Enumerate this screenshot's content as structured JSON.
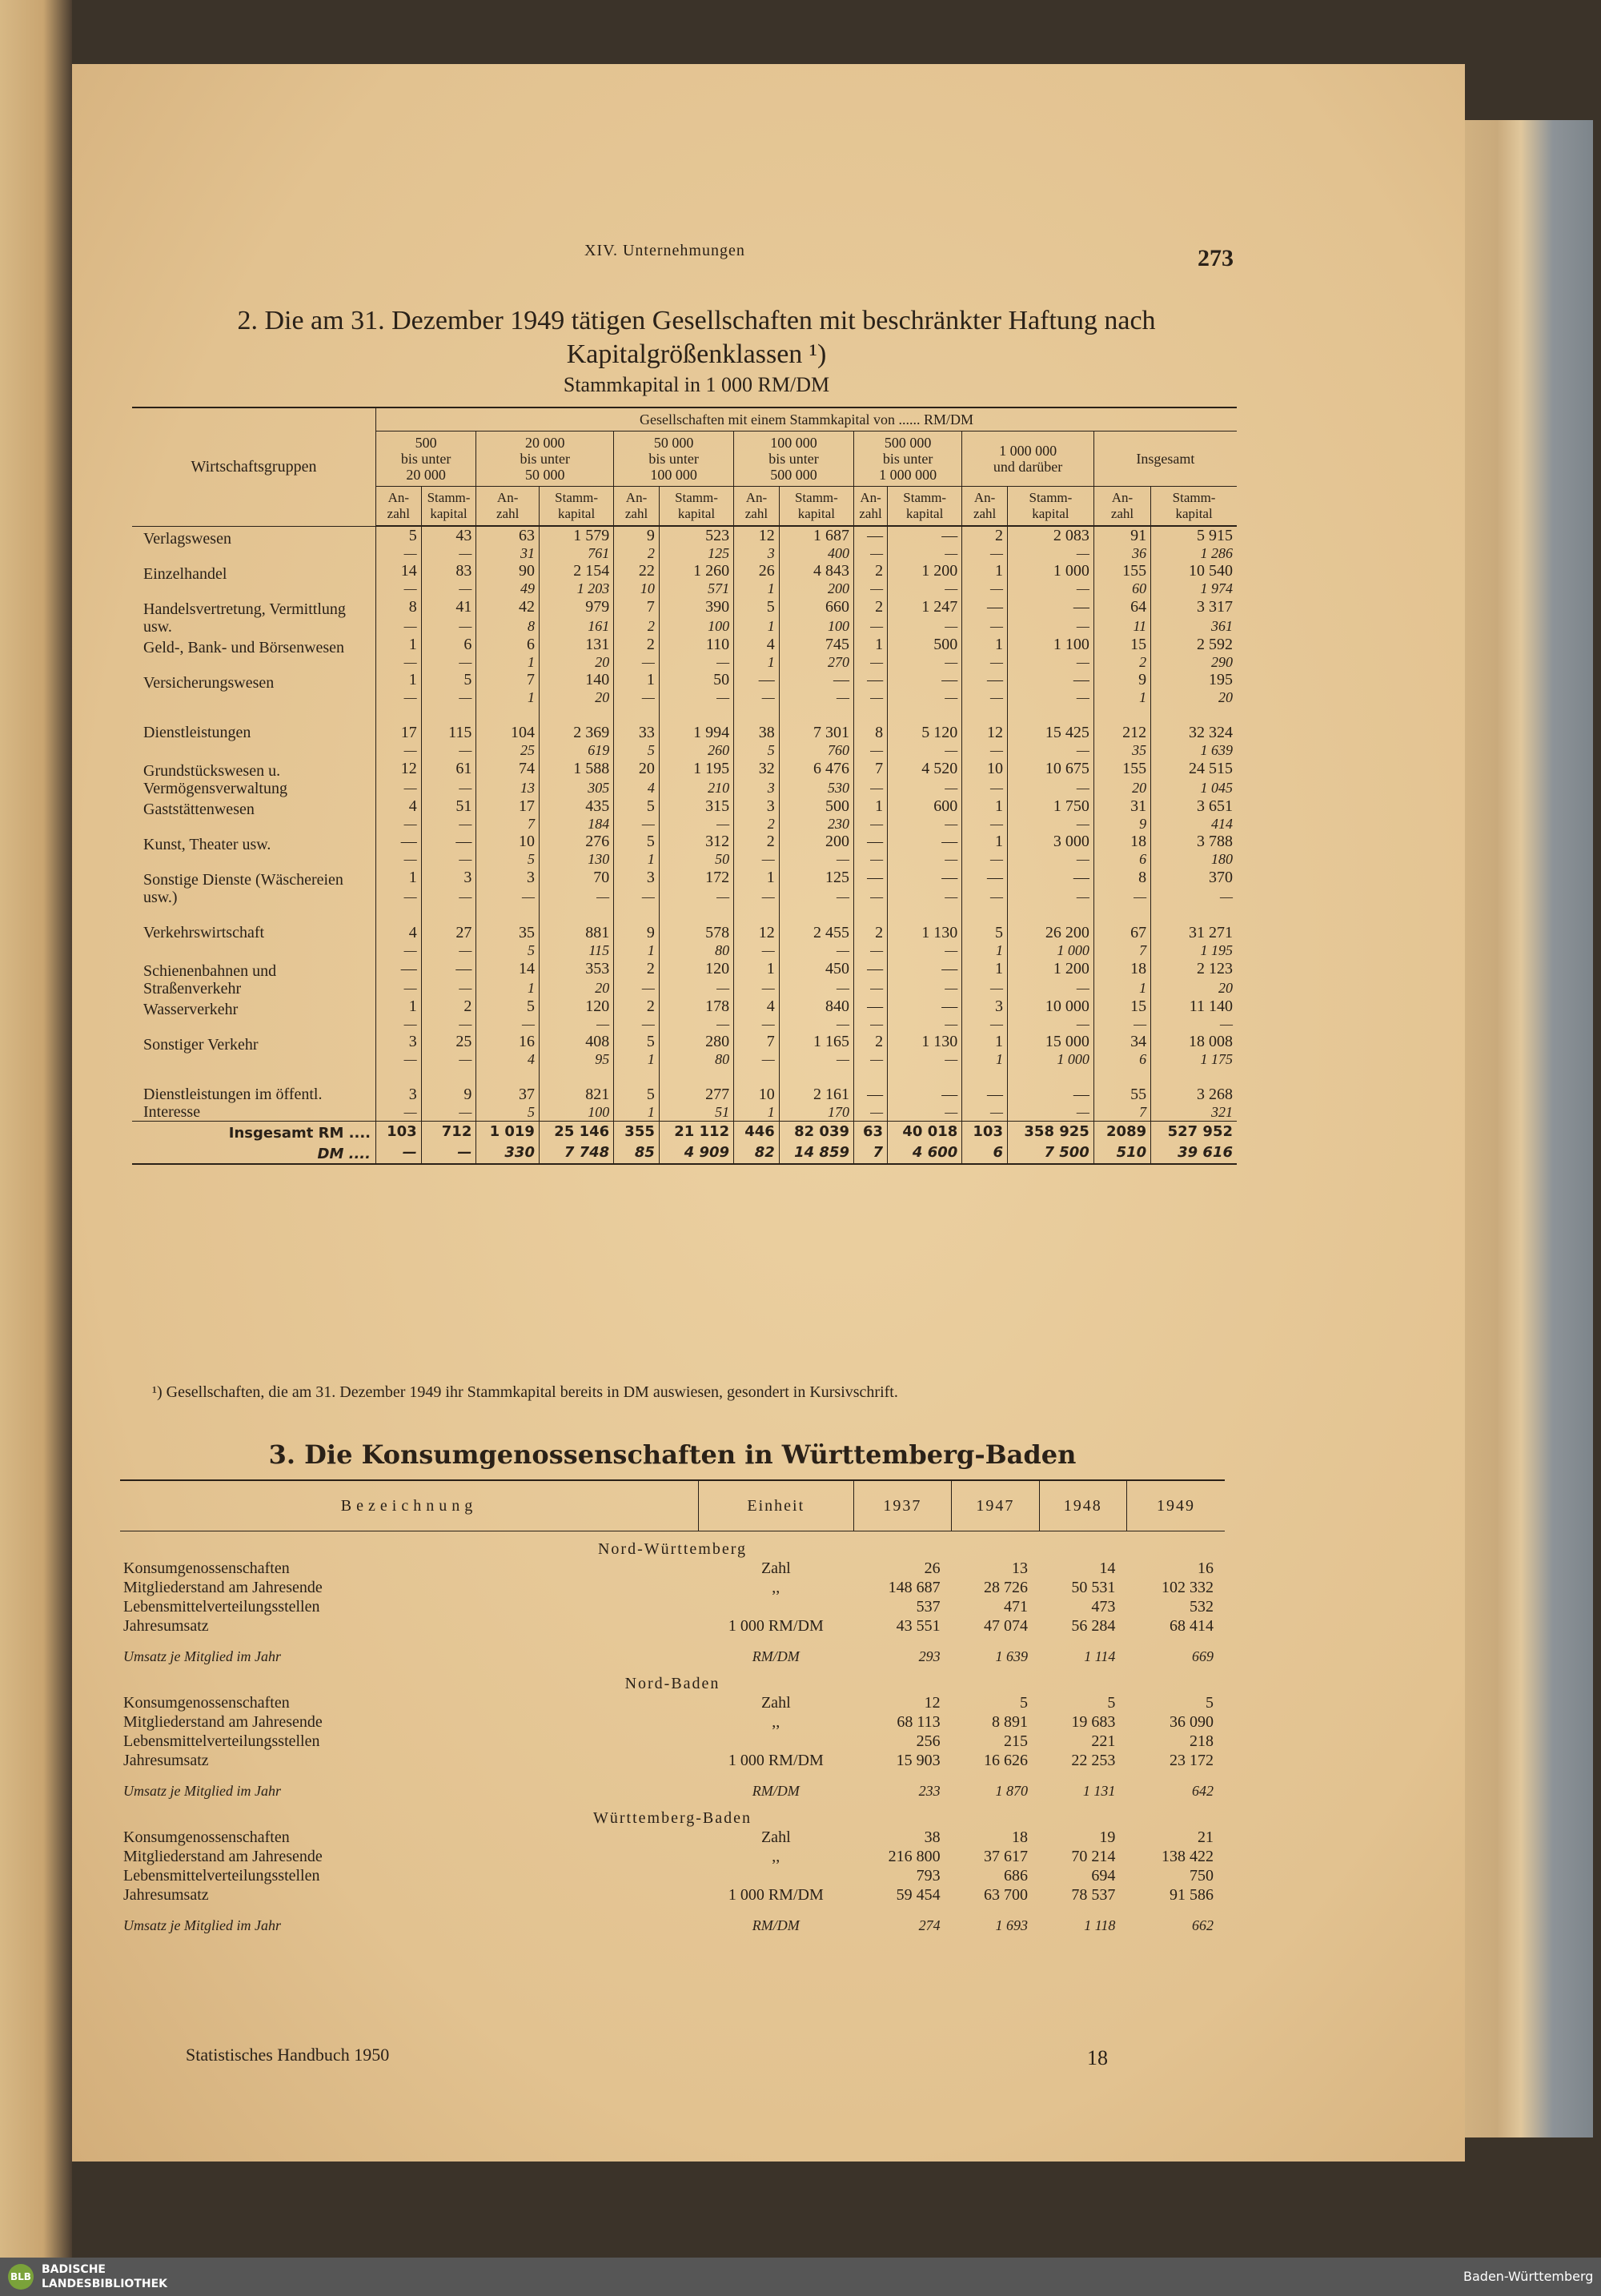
{
  "header": {
    "chapter": "XIV. Unternehmungen",
    "page_number": "273"
  },
  "table2": {
    "title": "2. Die am 31. Dezember 1949 tätigen Gesellschaften mit beschränkter Haftung nach Kapitalgrößenklassen ¹)",
    "subtitle": "Stammkapital in 1 000 RM/DM",
    "stub_header": "Wirtschaftsgruppen",
    "group_header": "Gesellschaften mit einem Stammkapital von ...... RM/DM",
    "groups": [
      "500\nbis unter\n20 000",
      "20 000\nbis unter\n50 000",
      "50 000\nbis unter\n100 000",
      "100 000\nbis unter\n500 000",
      "500 000\nbis unter\n1 000 000",
      "1 000 000\nund darüber",
      "Insgesamt"
    ],
    "sub_headers": [
      "An-\nzahl",
      "Stamm-\nkapital"
    ],
    "rows": [
      {
        "label": "Verlagswesen",
        "rm": [
          "5",
          "43",
          "63",
          "1 579",
          "9",
          "523",
          "12",
          "1 687",
          "—",
          "—",
          "2",
          "2 083",
          "91",
          "5 915"
        ],
        "dm": [
          "—",
          "—",
          "31",
          "761",
          "2",
          "125",
          "3",
          "400",
          "—",
          "—",
          "—",
          "—",
          "36",
          "1 286"
        ]
      },
      {
        "label": "Einzelhandel",
        "rm": [
          "14",
          "83",
          "90",
          "2 154",
          "22",
          "1 260",
          "26",
          "4 843",
          "2",
          "1 200",
          "1",
          "1 000",
          "155",
          "10 540"
        ],
        "dm": [
          "—",
          "—",
          "49",
          "1 203",
          "10",
          "571",
          "1",
          "200",
          "—",
          "—",
          "—",
          "—",
          "60",
          "1 974"
        ]
      },
      {
        "label": "Handelsvertretung, Vermittlung usw.",
        "rm": [
          "8",
          "41",
          "42",
          "979",
          "7",
          "390",
          "5",
          "660",
          "2",
          "1 247",
          "—",
          "—",
          "64",
          "3 317"
        ],
        "dm": [
          "—",
          "—",
          "8",
          "161",
          "2",
          "100",
          "1",
          "100",
          "—",
          "—",
          "—",
          "—",
          "11",
          "361"
        ]
      },
      {
        "label": "Geld-, Bank- und Börsenwesen",
        "rm": [
          "1",
          "6",
          "6",
          "131",
          "2",
          "110",
          "4",
          "745",
          "1",
          "500",
          "1",
          "1 100",
          "15",
          "2 592"
        ],
        "dm": [
          "—",
          "—",
          "1",
          "20",
          "—",
          "—",
          "1",
          "270",
          "—",
          "—",
          "—",
          "—",
          "2",
          "290"
        ]
      },
      {
        "label": "Versicherungswesen",
        "rm": [
          "1",
          "5",
          "7",
          "140",
          "1",
          "50",
          "—",
          "—",
          "—",
          "—",
          "—",
          "—",
          "9",
          "195"
        ],
        "dm": [
          "—",
          "—",
          "1",
          "20",
          "—",
          "—",
          "—",
          "—",
          "—",
          "—",
          "—",
          "—",
          "1",
          "20"
        ]
      },
      {
        "label": "Dienstleistungen",
        "rm": [
          "17",
          "115",
          "104",
          "2 369",
          "33",
          "1 994",
          "38",
          "7 301",
          "8",
          "5 120",
          "12",
          "15 425",
          "212",
          "32 324"
        ],
        "dm": [
          "—",
          "—",
          "25",
          "619",
          "5",
          "260",
          "5",
          "760",
          "—",
          "—",
          "—",
          "—",
          "35",
          "1 639"
        ]
      },
      {
        "label": "Grundstückswesen u. Vermögensverwaltung",
        "rm": [
          "12",
          "61",
          "74",
          "1 588",
          "20",
          "1 195",
          "32",
          "6 476",
          "7",
          "4 520",
          "10",
          "10 675",
          "155",
          "24 515"
        ],
        "dm": [
          "—",
          "—",
          "13",
          "305",
          "4",
          "210",
          "3",
          "530",
          "—",
          "—",
          "—",
          "—",
          "20",
          "1 045"
        ]
      },
      {
        "label": "Gaststättenwesen",
        "rm": [
          "4",
          "51",
          "17",
          "435",
          "5",
          "315",
          "3",
          "500",
          "1",
          "600",
          "1",
          "1 750",
          "31",
          "3 651"
        ],
        "dm": [
          "—",
          "—",
          "7",
          "184",
          "—",
          "—",
          "2",
          "230",
          "—",
          "—",
          "—",
          "—",
          "9",
          "414"
        ]
      },
      {
        "label": "Kunst, Theater usw.",
        "rm": [
          "—",
          "—",
          "10",
          "276",
          "5",
          "312",
          "2",
          "200",
          "—",
          "—",
          "1",
          "3 000",
          "18",
          "3 788"
        ],
        "dm": [
          "—",
          "—",
          "5",
          "130",
          "1",
          "50",
          "—",
          "—",
          "—",
          "—",
          "—",
          "—",
          "6",
          "180"
        ]
      },
      {
        "label": "Sonstige Dienste (Wäschereien usw.)",
        "rm": [
          "1",
          "3",
          "3",
          "70",
          "3",
          "172",
          "1",
          "125",
          "—",
          "—",
          "—",
          "—",
          "8",
          "370"
        ],
        "dm": [
          "—",
          "—",
          "—",
          "—",
          "—",
          "—",
          "—",
          "—",
          "—",
          "—",
          "—",
          "—",
          "—",
          "—"
        ]
      },
      {
        "label": "Verkehrswirtschaft",
        "rm": [
          "4",
          "27",
          "35",
          "881",
          "9",
          "578",
          "12",
          "2 455",
          "2",
          "1 130",
          "5",
          "26 200",
          "67",
          "31 271"
        ],
        "dm": [
          "—",
          "—",
          "5",
          "115",
          "1",
          "80",
          "—",
          "—",
          "—",
          "—",
          "1",
          "1 000",
          "7",
          "1 195"
        ]
      },
      {
        "label": "Schienenbahnen und Straßenverkehr",
        "rm": [
          "—",
          "—",
          "14",
          "353",
          "2",
          "120",
          "1",
          "450",
          "—",
          "—",
          "1",
          "1 200",
          "18",
          "2 123"
        ],
        "dm": [
          "—",
          "—",
          "1",
          "20",
          "—",
          "—",
          "—",
          "—",
          "—",
          "—",
          "—",
          "—",
          "1",
          "20"
        ]
      },
      {
        "label": "Wasserverkehr",
        "rm": [
          "1",
          "2",
          "5",
          "120",
          "2",
          "178",
          "4",
          "840",
          "—",
          "—",
          "3",
          "10 000",
          "15",
          "11 140"
        ],
        "dm": [
          "—",
          "—",
          "—",
          "—",
          "—",
          "—",
          "—",
          "—",
          "—",
          "—",
          "—",
          "—",
          "—",
          "—"
        ]
      },
      {
        "label": "Sonstiger Verkehr",
        "rm": [
          "3",
          "25",
          "16",
          "408",
          "5",
          "280",
          "7",
          "1 165",
          "2",
          "1 130",
          "1",
          "15 000",
          "34",
          "18 008"
        ],
        "dm": [
          "—",
          "—",
          "4",
          "95",
          "1",
          "80",
          "—",
          "—",
          "—",
          "—",
          "1",
          "1 000",
          "6",
          "1 175"
        ]
      },
      {
        "label": "Dienstleistungen im öffentl. Interesse",
        "rm": [
          "3",
          "9",
          "37",
          "821",
          "5",
          "277",
          "10",
          "2 161",
          "—",
          "—",
          "—",
          "—",
          "55",
          "3 268"
        ],
        "dm": [
          "—",
          "—",
          "5",
          "100",
          "1",
          "51",
          "1",
          "170",
          "—",
          "—",
          "—",
          "—",
          "7",
          "321"
        ]
      }
    ],
    "total": {
      "label_rm": "Insgesamt RM ....",
      "label_dm": "DM ....",
      "rm": [
        "103",
        "712",
        "1 019",
        "25 146",
        "355",
        "21 112",
        "446",
        "82 039",
        "63",
        "40 018",
        "103",
        "358 925",
        "2089",
        "527 952"
      ],
      "dm": [
        "—",
        "—",
        "330",
        "7 748",
        "85",
        "4 909",
        "82",
        "14 859",
        "7",
        "4 600",
        "6",
        "7 500",
        "510",
        "39 616"
      ]
    },
    "footnote": "¹) Gesellschaften, die am 31. Dezember 1949 ihr Stammkapital bereits in DM auswiesen, gesondert in Kursivschrift."
  },
  "table3": {
    "title": "3. Die Konsumgenossenschaften in Württemberg-Baden",
    "headers": [
      "Bezeichnung",
      "Einheit",
      "1937",
      "1947",
      "1948",
      "1949"
    ],
    "sections": [
      {
        "name": "Nord-Württemberg",
        "rows": [
          {
            "label": "Konsumgenossenschaften",
            "unit": "Zahl",
            "values": [
              "26",
              "13",
              "14",
              "16"
            ]
          },
          {
            "label": "Mitgliederstand am Jahresende",
            "unit": ",,",
            "values": [
              "148 687",
              "28 726",
              "50 531",
              "102 332"
            ]
          },
          {
            "label": "Lebensmittelverteilungsstellen",
            "unit": null,
            "values": [
              "537",
              "471",
              "473",
              "532"
            ]
          },
          {
            "label": "Jahresumsatz",
            "unit": "1 000 RM/DM",
            "values": [
              "43 551",
              "47 074",
              "56 284",
              "68 414"
            ]
          },
          {
            "label": "Umsatz je Mitglied im Jahr",
            "unit": "RM/DM",
            "values": [
              "293",
              "1 639",
              "1 114",
              "669"
            ]
          }
        ]
      },
      {
        "name": "Nord-Baden",
        "rows": [
          {
            "label": "Konsumgenossenschaften",
            "unit": "Zahl",
            "values": [
              "12",
              "5",
              "5",
              "5"
            ]
          },
          {
            "label": "Mitgliederstand am Jahresende",
            "unit": ",,",
            "values": [
              "68 113",
              "8 891",
              "19 683",
              "36 090"
            ]
          },
          {
            "label": "Lebensmittelverteilungsstellen",
            "unit": null,
            "values": [
              "256",
              "215",
              "221",
              "218"
            ]
          },
          {
            "label": "Jahresumsatz",
            "unit": "1 000 RM/DM",
            "values": [
              "15 903",
              "16 626",
              "22 253",
              "23 172"
            ]
          },
          {
            "label": "Umsatz je Mitglied im Jahr",
            "unit": "RM/DM",
            "values": [
              "233",
              "1 870",
              "1 131",
              "642"
            ]
          }
        ]
      },
      {
        "name": "Württemberg-Baden",
        "rows": [
          {
            "label": "Konsumgenossenschaften",
            "unit": "Zahl",
            "values": [
              "38",
              "18",
              "19",
              "21"
            ]
          },
          {
            "label": "Mitgliederstand am Jahresende",
            "unit": ",,",
            "values": [
              "216 800",
              "37 617",
              "70 214",
              "138 422"
            ]
          },
          {
            "label": "Lebensmittelverteilungsstellen",
            "unit": null,
            "values": [
              "793",
              "686",
              "694",
              "750"
            ]
          },
          {
            "label": "Jahresumsatz",
            "unit": "1 000 RM/DM",
            "values": [
              "59 454",
              "63 700",
              "78 537",
              "91 586"
            ]
          },
          {
            "label": "Umsatz je Mitglied im Jahr",
            "unit": "RM/DM",
            "values": [
              "274",
              "1 693",
              "1 118",
              "662"
            ]
          }
        ]
      }
    ]
  },
  "footer": {
    "source": "Statistisches Handbuch 1950",
    "signature": "18"
  },
  "bar": {
    "logo": "BLB",
    "library": "BADISCHE\nLANDESBIBLIOTHEK",
    "state": "Baden-Württemberg"
  }
}
